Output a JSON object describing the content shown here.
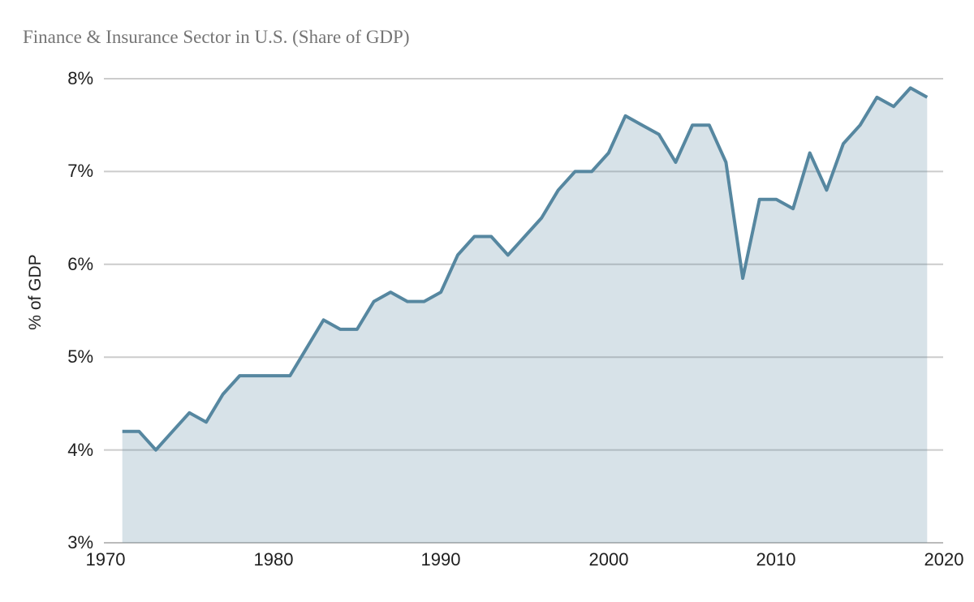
{
  "page": {
    "background": "#ffffff"
  },
  "chart_data": {
    "type": "area",
    "title": "Finance & Insurance Sector in U.S. (Share of GDP)",
    "ylabel": "% of GDP",
    "xlabel": "",
    "x": [
      1971,
      1972,
      1973,
      1974,
      1975,
      1976,
      1977,
      1978,
      1979,
      1980,
      1981,
      1982,
      1983,
      1984,
      1985,
      1986,
      1987,
      1988,
      1989,
      1990,
      1991,
      1992,
      1993,
      1994,
      1995,
      1996,
      1997,
      1998,
      1999,
      2000,
      2001,
      2002,
      2003,
      2004,
      2005,
      2006,
      2007,
      2008,
      2009,
      2010,
      2011,
      2012,
      2013,
      2014,
      2015,
      2016,
      2017,
      2018,
      2019
    ],
    "values": [
      4.2,
      4.2,
      4.0,
      4.2,
      4.4,
      4.3,
      4.6,
      4.8,
      4.8,
      4.8,
      4.8,
      5.1,
      5.4,
      5.3,
      5.3,
      5.6,
      5.7,
      5.6,
      5.6,
      5.7,
      6.1,
      6.3,
      6.3,
      6.1,
      6.3,
      6.5,
      6.8,
      7.0,
      7.0,
      7.2,
      7.6,
      7.5,
      7.4,
      7.1,
      7.5,
      7.5,
      7.1,
      5.85,
      6.7,
      6.7,
      6.6,
      7.2,
      6.8,
      7.3,
      7.5,
      7.8,
      7.7,
      7.9,
      7.8
    ],
    "xlim": [
      1970,
      2020
    ],
    "ylim": [
      3,
      8
    ],
    "x_ticks": {
      "values": [
        1970,
        1980,
        1990,
        2000,
        2010,
        2020
      ],
      "labels": [
        "1970",
        "1980",
        "1990",
        "2000",
        "2010",
        "2020"
      ]
    },
    "y_ticks": {
      "values": [
        3,
        4,
        5,
        6,
        7,
        8
      ],
      "labels": [
        "3%",
        "4%",
        "5%",
        "6%",
        "7%",
        "8%"
      ]
    },
    "grid": "horizontal",
    "legend": "none",
    "colors": {
      "line": "#5687a0",
      "fill": "rgba(86,135,160,0.24)",
      "grid": "#cccccc",
      "baseline": "#bbbbbb",
      "title": "#757575",
      "tick_text": "#1f1f1f"
    }
  }
}
